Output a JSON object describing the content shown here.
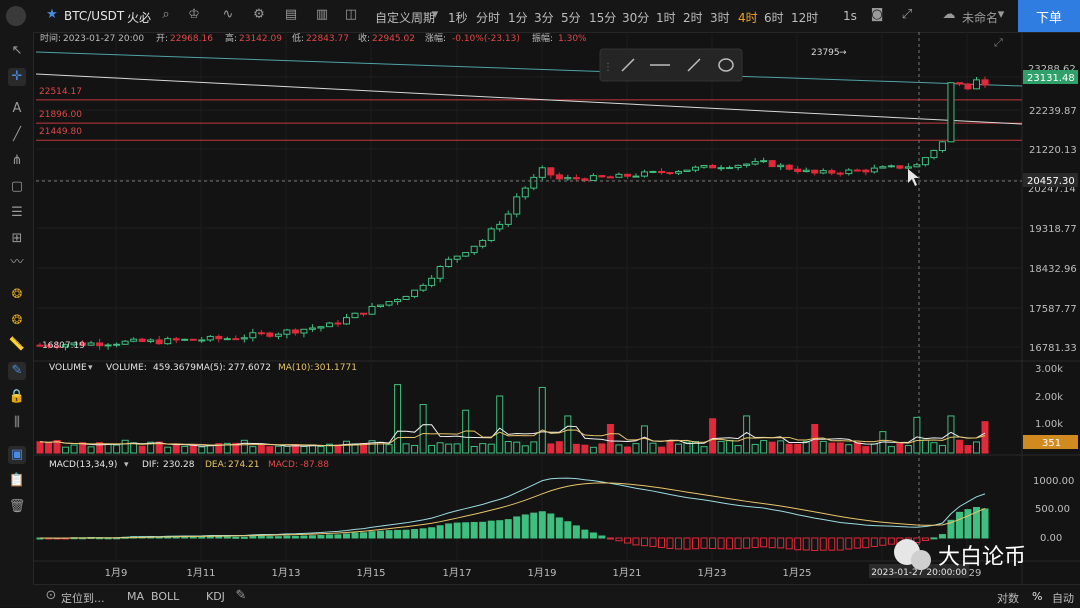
{
  "topbar": {
    "symbol": "BTC/USDT",
    "exchange": "火必",
    "custom_period": "自定义周期",
    "periods": [
      "1秒",
      "分时",
      "1分",
      "3分",
      "5分",
      "15分",
      "30分",
      "1时",
      "2时",
      "3时",
      "4时",
      "6时",
      "12时"
    ],
    "active_period": "4时",
    "seconds": "1s",
    "account": "未命名",
    "order_button": "下单"
  },
  "info": {
    "time_label": "时间:",
    "time": "2023-01-27 20:00",
    "open_label": "开:",
    "open": "22968.16",
    "high_label": "高:",
    "high": "23142.09",
    "low_label": "低:",
    "low": "22843.77",
    "close_label": "收:",
    "close": "22945.02",
    "change_label": "涨幅:",
    "change": "-0.10%(-23.13)",
    "amplitude_label": "振幅:",
    "amplitude": "1.30%"
  },
  "price_axis": {
    "ticks": [
      "23131.48",
      "22239.87",
      "21220.13",
      "20457.30",
      "19318.77",
      "18432.96",
      "17587.77",
      "16781.33"
    ],
    "top_partial": "23288.62",
    "crosshair_partial": "20247.14",
    "last_price": "23131.48",
    "crosshair_price": "20457.30"
  },
  "levels": [
    {
      "label": "22514.17",
      "value": 22514.17
    },
    {
      "label": "21896.00",
      "value": 21896.0
    },
    {
      "label": "21449.80",
      "value": 21449.8
    }
  ],
  "annotations": {
    "high_marker": "23795",
    "low_marker": "16807.19"
  },
  "volume": {
    "title": "VOLUME",
    "vol_label": "VOLUME:",
    "vol": "459.3679",
    "ma5_label": "MA(5):",
    "ma5": "277.6072",
    "ma10_label": "MA(10):",
    "ma10": "301.1771",
    "ticks": [
      "3.00k",
      "2.00k",
      "1.00k"
    ],
    "last": "351"
  },
  "macd": {
    "title": "MACD(13,34,9)",
    "dif_label": "DIF:",
    "dif": "230.28",
    "dea_label": "DEA:",
    "dea": "274.21",
    "macd_label": "MACD:",
    "macd": "-87.88",
    "ticks": [
      "1000.00",
      "500.00",
      "0.00"
    ]
  },
  "x_axis": {
    "dates": [
      "1月9",
      "1月11",
      "1月13",
      "1月15",
      "1月17",
      "1月19",
      "1月21",
      "1月23",
      "1月25",
      "29"
    ],
    "crosshair": "2023-01-27 20:00:00"
  },
  "bottom": {
    "locate": "定位到...",
    "indicators": [
      "MA",
      "BOLL",
      "KDJ"
    ],
    "log": "对数",
    "percent": "%",
    "auto": "自动"
  },
  "watermark": "大白论币",
  "colors": {
    "up": "#3fbf7f",
    "down": "#e0293a",
    "ma5": "#f0f0f0",
    "ma10": "#e8c56a",
    "accent": "#f0a020",
    "button": "#2f7de1"
  }
}
